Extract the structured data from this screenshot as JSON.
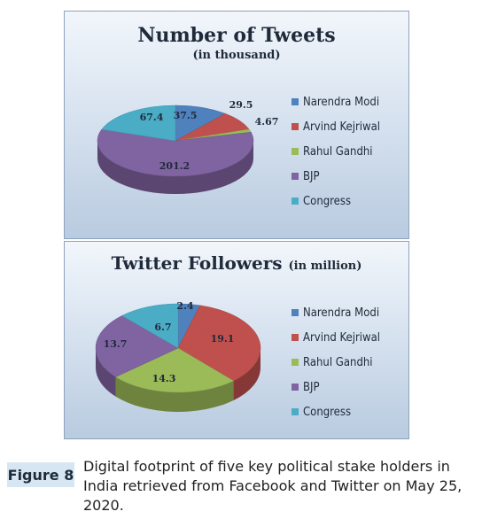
{
  "chart_data": [
    {
      "type": "pie",
      "title": "Number of Tweets",
      "subtitle": "(in thousand)",
      "categories": [
        "Narendra Modi",
        "Arvind Kejriwal",
        "Rahul Gandhi",
        "BJP",
        "Congress"
      ],
      "values": [
        37.5,
        29.5,
        4.67,
        201.2,
        67.4
      ],
      "labels": [
        "37.5",
        "29.5",
        "4.67",
        "201.2",
        "67.4"
      ],
      "colors": [
        "#4f81bd",
        "#c0504d",
        "#9bbb59",
        "#8064a2",
        "#4bacc6"
      ],
      "legend": "right"
    },
    {
      "type": "pie",
      "title": "Twitter Followers",
      "subtitle": "(in million)",
      "categories": [
        "Narendra Modi",
        "Arvind Kejriwal",
        "Rahul Gandhi",
        "BJP",
        "Congress"
      ],
      "values": [
        2.4,
        19.1,
        14.3,
        13.7,
        6.7
      ],
      "labels": [
        "2.4",
        "19.1",
        "14.3",
        "13.7",
        "6.7"
      ],
      "colors": [
        "#4f81bd",
        "#c0504d",
        "#9bbb59",
        "#8064a2",
        "#4bacc6"
      ],
      "legend": "right"
    }
  ],
  "figure": {
    "badge": "Figure 8",
    "caption": "Digital footprint of five key political stake holders in India retrieved from Facebook and Twitter on May 25, 2020."
  }
}
